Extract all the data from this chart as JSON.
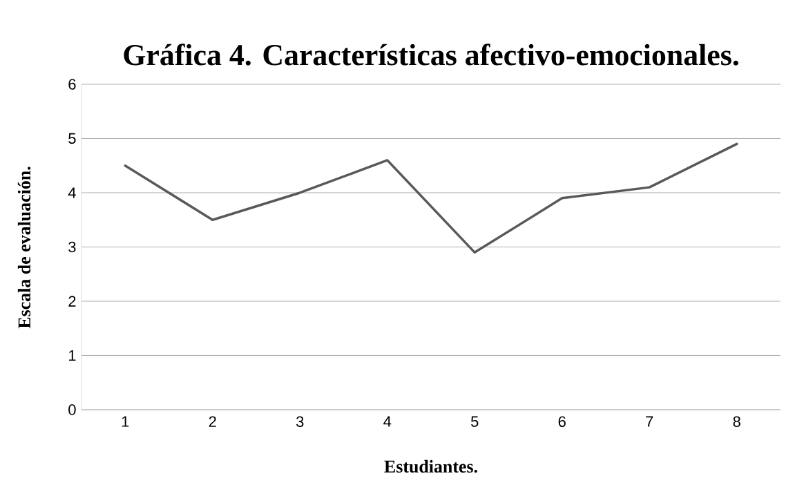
{
  "chart_data": {
    "type": "line",
    "title": "Gráfica 4. Características afectivo-emocionales.",
    "xlabel": "Estudiantes.",
    "ylabel": "Escala de evaluación.",
    "categories": [
      "1",
      "2",
      "3",
      "4",
      "5",
      "6",
      "7",
      "8"
    ],
    "values": [
      4.5,
      3.5,
      4.0,
      4.6,
      2.9,
      3.9,
      4.1,
      4.9
    ],
    "color": "#595959",
    "ylim": [
      0,
      6
    ],
    "yticks": [
      0,
      1,
      2,
      3,
      4,
      5,
      6
    ],
    "grid": "y",
    "marker": "none",
    "line_style": "solid"
  }
}
